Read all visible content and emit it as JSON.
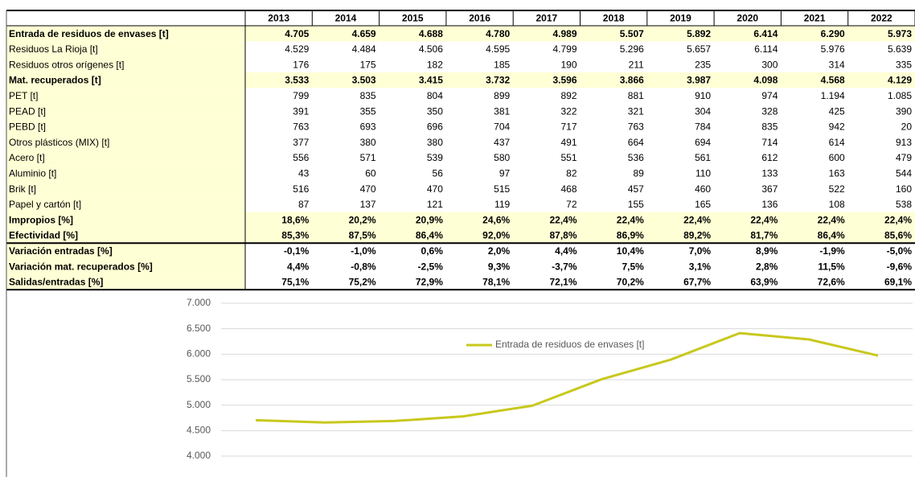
{
  "table": {
    "header": [
      "2013",
      "2014",
      "2015",
      "2016",
      "2017",
      "2018",
      "2019",
      "2020",
      "2021",
      "2022"
    ],
    "rows": [
      {
        "label": "Entrada de residuos de envases [t]",
        "cells": [
          "4.705",
          "4.659",
          "4.688",
          "4.780",
          "4.989",
          "5.507",
          "5.892",
          "6.414",
          "6.290",
          "5.973"
        ]
      },
      {
        "label": "Residuos La Rioja [t]",
        "cells": [
          "4.529",
          "4.484",
          "4.506",
          "4.595",
          "4.799",
          "5.296",
          "5.657",
          "6.114",
          "5.976",
          "5.639"
        ]
      },
      {
        "label": "Residuos otros orígenes [t]",
        "cells": [
          "176",
          "175",
          "182",
          "185",
          "190",
          "211",
          "235",
          "300",
          "314",
          "335"
        ]
      },
      {
        "label": "Mat. recuperados [t]",
        "cells": [
          "3.533",
          "3.503",
          "3.415",
          "3.732",
          "3.596",
          "3.866",
          "3.987",
          "4.098",
          "4.568",
          "4.129"
        ]
      },
      {
        "label": "PET [t]",
        "cells": [
          "799",
          "835",
          "804",
          "899",
          "892",
          "881",
          "910",
          "974",
          "1.194",
          "1.085"
        ]
      },
      {
        "label": "PEAD [t]",
        "cells": [
          "391",
          "355",
          "350",
          "381",
          "322",
          "321",
          "304",
          "328",
          "425",
          "390"
        ]
      },
      {
        "label": "PEBD [t]",
        "cells": [
          "763",
          "693",
          "696",
          "704",
          "717",
          "763",
          "784",
          "835",
          "942",
          "20"
        ]
      },
      {
        "label": "Otros plásticos (MIX)  [t]",
        "cells": [
          "377",
          "380",
          "380",
          "437",
          "491",
          "664",
          "694",
          "714",
          "614",
          "913"
        ]
      },
      {
        "label": "Acero [t]",
        "cells": [
          "556",
          "571",
          "539",
          "580",
          "551",
          "536",
          "561",
          "612",
          "600",
          "479"
        ]
      },
      {
        "label": "Aluminio [t]",
        "cells": [
          "43",
          "60",
          "56",
          "97",
          "82",
          "89",
          "110",
          "133",
          "163",
          "544"
        ]
      },
      {
        "label": "Brik [t]",
        "cells": [
          "516",
          "470",
          "470",
          "515",
          "468",
          "457",
          "460",
          "367",
          "522",
          "160"
        ]
      },
      {
        "label": "Papel y cartón [t]",
        "cells": [
          "87",
          "137",
          "121",
          "119",
          "72",
          "155",
          "165",
          "136",
          "108",
          "538"
        ]
      },
      {
        "label": "Impropios [%]",
        "cells": [
          "18,6%",
          "20,2%",
          "20,9%",
          "24,6%",
          "22,4%",
          "22,4%",
          "22,4%",
          "22,4%",
          "22,4%",
          "22,4%"
        ]
      },
      {
        "label": "Efectividad [%]",
        "cells": [
          "85,3%",
          "87,5%",
          "86,4%",
          "92,0%",
          "87,8%",
          "86,9%",
          "89,2%",
          "81,7%",
          "86,4%",
          "85,6%"
        ]
      },
      {
        "label": "Variación entradas [%]",
        "cells": [
          "-0,1%",
          "-1,0%",
          "0,6%",
          "2,0%",
          "4,4%",
          "10,4%",
          "7,0%",
          "8,9%",
          "-1,9%",
          "-5,0%"
        ]
      },
      {
        "label": "Variación mat. recuperados [%]",
        "cells": [
          "4,4%",
          "-0,8%",
          "-2,5%",
          "9,3%",
          "-3,7%",
          "7,5%",
          "3,1%",
          "2,8%",
          "11,5%",
          "-9,6%"
        ]
      },
      {
        "label": "Salidas/entradas [%]",
        "cells": [
          "75,1%",
          "75,2%",
          "72,9%",
          "78,1%",
          "72,1%",
          "70,2%",
          "67,7%",
          "63,9%",
          "72,6%",
          "69,1%"
        ]
      }
    ]
  },
  "chart_data": {
    "type": "line",
    "series": [
      {
        "name": "Entrada de residuos de envases [t]",
        "color": "#c8c81e",
        "values": [
          4705,
          4659,
          4688,
          4780,
          4989,
          5507,
          5892,
          6414,
          6290,
          5973
        ]
      }
    ],
    "ylim": [
      4000,
      7000
    ],
    "yticks": [
      {
        "value": 4000,
        "label": "4.000"
      },
      {
        "value": 4500,
        "label": "4.500"
      },
      {
        "value": 5000,
        "label": "5.000"
      },
      {
        "value": 5500,
        "label": "5.500"
      },
      {
        "value": 6000,
        "label": "6.000"
      },
      {
        "value": 6500,
        "label": "6.500"
      },
      {
        "value": 7000,
        "label": "7.000"
      }
    ],
    "grid": true,
    "legend": "top"
  }
}
